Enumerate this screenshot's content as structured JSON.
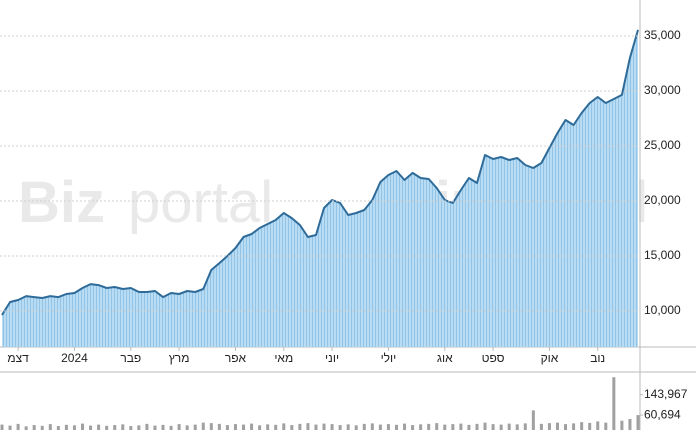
{
  "chart_data": {
    "type": "line",
    "watermark_bold": "Biz",
    "watermark_light": "portal",
    "categories": [
      null,
      null,
      "דצמ",
      null,
      null,
      null,
      null,
      null,
      null,
      "2024",
      null,
      null,
      null,
      null,
      null,
      null,
      "פבר",
      null,
      null,
      null,
      null,
      null,
      "מרץ",
      null,
      null,
      null,
      null,
      null,
      null,
      "אפר",
      null,
      null,
      null,
      null,
      null,
      "מאי",
      null,
      null,
      null,
      null,
      null,
      "יוני",
      null,
      null,
      null,
      null,
      null,
      null,
      "יולי",
      null,
      null,
      null,
      null,
      null,
      null,
      "אוג",
      null,
      null,
      null,
      null,
      null,
      "ספט",
      null,
      null,
      null,
      null,
      null,
      null,
      "אוק",
      null,
      null,
      null,
      null,
      null,
      "נוב",
      null,
      null,
      null,
      null,
      null
    ],
    "series": [
      {
        "name": "price",
        "color": "#2e6b99",
        "fill": "#a8d3f0",
        "values": [
          9640,
          10820,
          11000,
          11360,
          11270,
          11180,
          11360,
          11270,
          11550,
          11640,
          12090,
          12450,
          12360,
          12090,
          12180,
          12000,
          12090,
          11730,
          11730,
          11820,
          11270,
          11640,
          11550,
          11820,
          11730,
          12000,
          13730,
          14360,
          15000,
          15730,
          16730,
          17000,
          17550,
          17910,
          18270,
          18910,
          18450,
          17820,
          16730,
          16910,
          19360,
          20090,
          19820,
          18730,
          18910,
          19180,
          20090,
          21730,
          22360,
          22730,
          21910,
          22550,
          22090,
          22000,
          21180,
          20090,
          19820,
          21000,
          22090,
          21640,
          24180,
          23820,
          24000,
          23730,
          23910,
          23270,
          23000,
          23450,
          24820,
          26180,
          27360,
          26910,
          28000,
          28910,
          29450,
          28910,
          29270,
          29640,
          33000,
          35550
        ]
      },
      {
        "name": "volume",
        "color": "#a0a0a0",
        "axis": "y2",
        "values": [
          22000,
          18000,
          25000,
          15000,
          20000,
          17000,
          24000,
          16000,
          21000,
          19000,
          26000,
          18000,
          22000,
          17000,
          20000,
          23000,
          16000,
          19000,
          25000,
          18000,
          21000,
          17000,
          24000,
          19000,
          22000,
          30000,
          28000,
          25000,
          20000,
          24000,
          22000,
          26000,
          19000,
          23000,
          21000,
          27000,
          20000,
          25000,
          28000,
          22000,
          26000,
          24000,
          20000,
          23000,
          19000,
          25000,
          27000,
          22000,
          24000,
          21000,
          26000,
          20000,
          23000,
          25000,
          28000,
          22000,
          24000,
          26000,
          21000,
          25000,
          30000,
          24000,
          22000,
          26000,
          23000,
          27000,
          80000,
          25000,
          28000,
          30000,
          24000,
          27000,
          32000,
          29000,
          35000,
          30000,
          215000,
          38000,
          45000,
          60694
        ]
      }
    ],
    "ylim": [
      6730,
      38270
    ],
    "yticks": [
      {
        "value": 10000,
        "label": "10,000"
      },
      {
        "value": 15000,
        "label": "15,000"
      },
      {
        "value": 20000,
        "label": "20,000"
      },
      {
        "value": 25000,
        "label": "25,000"
      },
      {
        "value": 30000,
        "label": "30,000"
      },
      {
        "value": 35000,
        "label": "35,000"
      }
    ],
    "y2lim": [
      0,
      220000
    ],
    "y2ticks": [
      {
        "value": 143967,
        "label": "143,967"
      },
      {
        "value": 60694,
        "label": "60,694"
      }
    ],
    "grid": true
  }
}
